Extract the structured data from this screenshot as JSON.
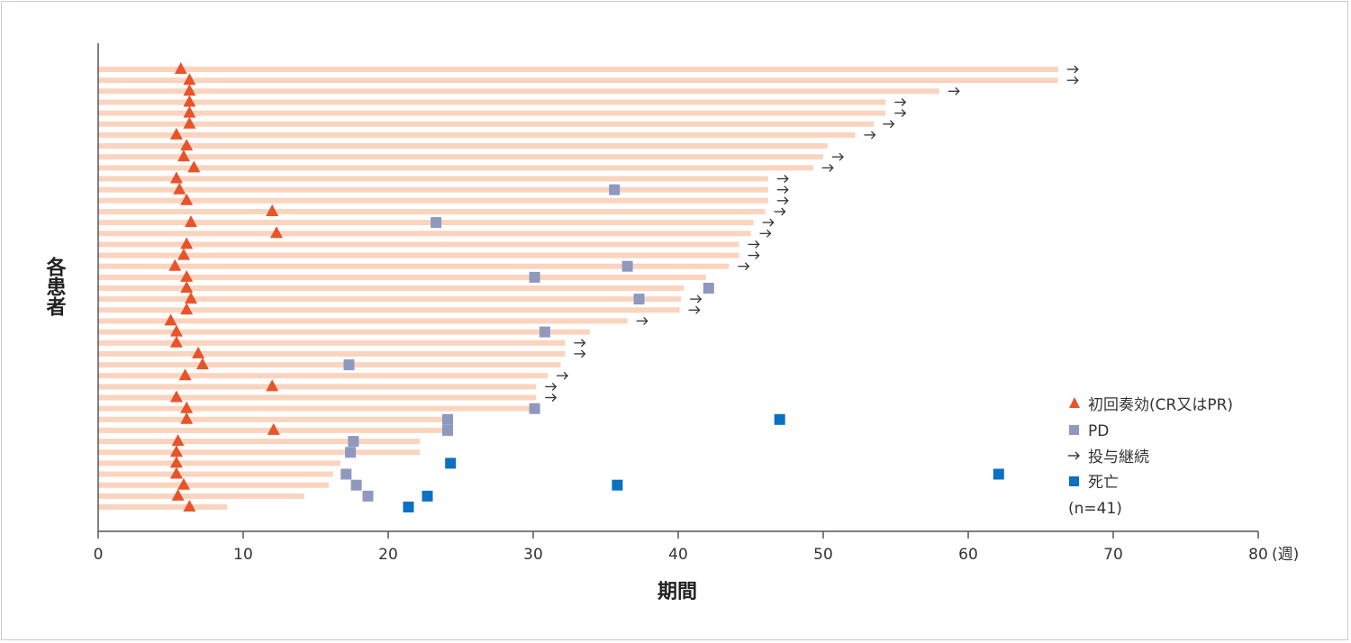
{
  "chart_data": {
    "type": "swimmer",
    "xlabel": "期間",
    "ylabel": "各患者",
    "x_unit": "(週)",
    "xlim": [
      0,
      80
    ],
    "xticks": [
      0,
      10,
      20,
      30,
      40,
      50,
      60,
      70,
      80
    ],
    "legend": {
      "response": "初回奏効(CR又はPR)",
      "pd": "PD",
      "continuing": "投与継続",
      "death": "死亡",
      "n": "(n=41)"
    },
    "colors": {
      "bar": "#fad4bf",
      "response": "#e8542a",
      "pd": "#8f98bd",
      "death": "#0c71c0",
      "arrow": "#333333",
      "axis": "#555555"
    },
    "patients": [
      {
        "duration": 66.2,
        "response": 5.7,
        "continuing": true
      },
      {
        "duration": 66.2,
        "response": 6.3,
        "continuing": true
      },
      {
        "duration": 58.0,
        "response": 6.3,
        "continuing": true
      },
      {
        "duration": 54.3,
        "response": 6.3,
        "continuing": true
      },
      {
        "duration": 54.3,
        "response": 6.3,
        "continuing": true
      },
      {
        "duration": 53.5,
        "response": 6.3,
        "continuing": true
      },
      {
        "duration": 52.2,
        "response": 5.4,
        "continuing": true
      },
      {
        "duration": 50.3,
        "response": 6.1,
        "continuing": false
      },
      {
        "duration": 50.0,
        "response": 5.9,
        "continuing": true
      },
      {
        "duration": 49.3,
        "response": 6.6,
        "continuing": true
      },
      {
        "duration": 46.2,
        "response": 5.4,
        "continuing": true
      },
      {
        "duration": 46.2,
        "response": 5.6,
        "pd": 35.6,
        "continuing": true
      },
      {
        "duration": 46.2,
        "response": 6.1,
        "continuing": true
      },
      {
        "duration": 46.0,
        "response": 12.0,
        "continuing": true
      },
      {
        "duration": 45.2,
        "response": 6.4,
        "pd": 23.3,
        "continuing": true
      },
      {
        "duration": 45.0,
        "response": 12.3,
        "continuing": true
      },
      {
        "duration": 44.2,
        "response": 6.1,
        "continuing": true
      },
      {
        "duration": 44.2,
        "response": 5.9,
        "continuing": true
      },
      {
        "duration": 43.5,
        "response": 5.3,
        "pd": 36.5,
        "continuing": true
      },
      {
        "duration": 41.9,
        "response": 6.1,
        "pd": 30.1,
        "continuing": false
      },
      {
        "duration": 40.4,
        "response": 6.1,
        "pd": 42.1,
        "continuing": false
      },
      {
        "duration": 40.2,
        "response": 6.4,
        "pd": 37.3,
        "continuing": true
      },
      {
        "duration": 40.1,
        "response": 6.1,
        "continuing": true
      },
      {
        "duration": 36.5,
        "response": 5.0,
        "continuing": true
      },
      {
        "duration": 33.9,
        "response": 5.4,
        "pd": 30.8,
        "continuing": false
      },
      {
        "duration": 32.2,
        "response": 5.4,
        "continuing": true
      },
      {
        "duration": 32.2,
        "response": 6.9,
        "continuing": true
      },
      {
        "duration": 31.9,
        "response": 7.2,
        "pd": 17.3,
        "continuing": false
      },
      {
        "duration": 31.0,
        "response": 6.0,
        "continuing": true
      },
      {
        "duration": 30.2,
        "response": 12.0,
        "continuing": true
      },
      {
        "duration": 30.2,
        "response": 5.4,
        "continuing": true
      },
      {
        "duration": 30.1,
        "response": 6.1,
        "pd": 30.1,
        "continuing": false
      },
      {
        "duration": 24.1,
        "response": 6.1,
        "pd": 24.1,
        "death": 47.0,
        "continuing": false
      },
      {
        "duration": 24.1,
        "response": 12.1,
        "pd": 24.1,
        "continuing": false
      },
      {
        "duration": 22.2,
        "response": 5.5,
        "pd": 17.6,
        "continuing": false
      },
      {
        "duration": 22.2,
        "response": 5.4,
        "pd": 17.4,
        "continuing": false
      },
      {
        "duration": 16.7,
        "response": 5.4,
        "death": 24.3,
        "continuing": false
      },
      {
        "duration": 16.2,
        "response": 5.4,
        "pd": 17.1,
        "death": 62.1,
        "continuing": false
      },
      {
        "duration": 15.9,
        "response": 5.9,
        "pd": 17.8,
        "death": 35.8,
        "continuing": false
      },
      {
        "duration": 14.2,
        "response": 5.5,
        "pd": 18.6,
        "death": 22.7,
        "continuing": false
      },
      {
        "duration": 8.9,
        "response": 6.3,
        "death": 21.4,
        "continuing": false
      }
    ]
  }
}
